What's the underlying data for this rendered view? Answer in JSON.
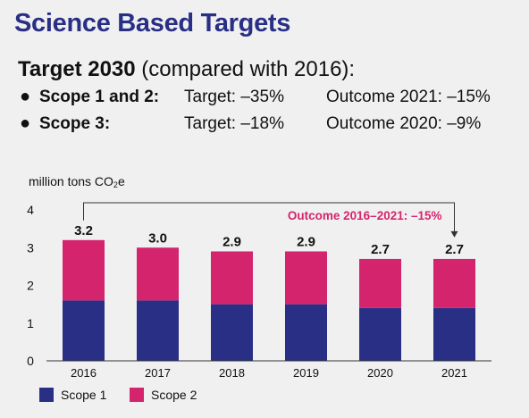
{
  "header": {
    "title": "Science Based Targets",
    "target_bold": "Target 2030",
    "target_rest": " (compared with 2016):"
  },
  "scopes": [
    {
      "bullet": "●",
      "label": "Scope 1 and 2:",
      "target": "Target: –35%",
      "outcome": "Outcome 2021: –15%"
    },
    {
      "bullet": "●",
      "label": "Scope 3:",
      "target": "Target: –18%",
      "outcome": "Outcome 2020: –9%"
    }
  ],
  "colors": {
    "title": "#2a2f86",
    "scope1": "#2a2f86",
    "scope2": "#d4246e",
    "annotation": "#d4246e"
  },
  "chart_data": {
    "type": "bar",
    "stacked": true,
    "unit_text": "million tons CO",
    "unit_sub": "2",
    "unit_suffix": "e",
    "categories": [
      "2016",
      "2017",
      "2018",
      "2019",
      "2020",
      "2021"
    ],
    "series": [
      {
        "name": "Scope 1",
        "values": [
          1.6,
          1.6,
          1.5,
          1.5,
          1.4,
          1.4
        ]
      },
      {
        "name": "Scope 2",
        "values": [
          1.6,
          1.4,
          1.4,
          1.4,
          1.3,
          1.3
        ]
      }
    ],
    "totals": [
      "3.2",
      "3.0",
      "2.9",
      "2.9",
      "2.7",
      "2.7"
    ],
    "y_ticks": [
      "0",
      "1",
      "2",
      "3",
      "4"
    ],
    "ylim": [
      0,
      4
    ],
    "annotation": "Outcome 2016–2021: –15%",
    "legend_position": "bottom-left",
    "grid": false
  }
}
